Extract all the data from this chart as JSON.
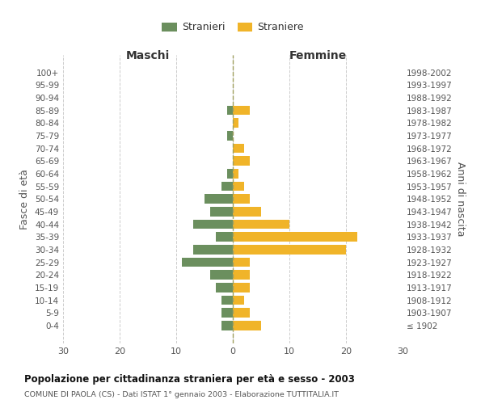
{
  "age_groups": [
    "100+",
    "95-99",
    "90-94",
    "85-89",
    "80-84",
    "75-79",
    "70-74",
    "65-69",
    "60-64",
    "55-59",
    "50-54",
    "45-49",
    "40-44",
    "35-39",
    "30-34",
    "25-29",
    "20-24",
    "15-19",
    "10-14",
    "5-9",
    "0-4"
  ],
  "birth_years": [
    "≤ 1902",
    "1903-1907",
    "1908-1912",
    "1913-1917",
    "1918-1922",
    "1923-1927",
    "1928-1932",
    "1933-1937",
    "1938-1942",
    "1943-1947",
    "1948-1952",
    "1953-1957",
    "1958-1962",
    "1963-1967",
    "1968-1972",
    "1973-1977",
    "1978-1982",
    "1983-1987",
    "1988-1992",
    "1993-1997",
    "1998-2002"
  ],
  "males": [
    0,
    0,
    0,
    1,
    0,
    1,
    0,
    0,
    1,
    2,
    5,
    4,
    7,
    3,
    7,
    9,
    4,
    3,
    2,
    2,
    2
  ],
  "females": [
    0,
    0,
    0,
    3,
    1,
    0,
    2,
    3,
    1,
    2,
    3,
    5,
    10,
    22,
    20,
    3,
    3,
    3,
    2,
    3,
    5
  ],
  "male_color": "#6b8f5e",
  "female_color": "#f0b429",
  "grid_color": "#cccccc",
  "title": "Popolazione per cittadinanza straniera per età e sesso - 2003",
  "subtitle": "COMUNE DI PAOLA (CS) - Dati ISTAT 1° gennaio 2003 - Elaborazione TUTTITALIA.IT",
  "xlabel_left": "Maschi",
  "xlabel_right": "Femmine",
  "ylabel_left": "Fasce di età",
  "ylabel_right": "Anni di nascita",
  "legend_stranieri": "Stranieri",
  "legend_straniere": "Straniere",
  "xlim": 30
}
